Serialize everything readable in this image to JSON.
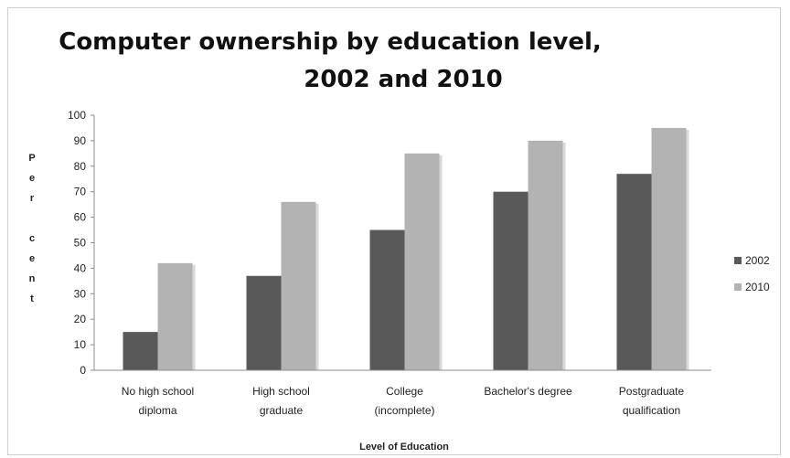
{
  "chart_data": {
    "type": "bar",
    "title_lines": [
      "Computer ownership by education level,",
      "2002 and 2010"
    ],
    "xlabel": "Level of Education",
    "ylabel_chars": [
      "P",
      "e",
      "r",
      "",
      "c",
      "e",
      "n",
      "t"
    ],
    "ylim": [
      0,
      100
    ],
    "yticks": [
      "0",
      "10",
      "20",
      "30",
      "40",
      "50",
      "60",
      "70",
      "80",
      "90",
      "100"
    ],
    "categories": [
      [
        "No high school",
        "diploma"
      ],
      [
        "High school",
        "graduate"
      ],
      [
        "College",
        "(incomplete)"
      ],
      [
        "Bachelor's degree"
      ],
      [
        "Postgraduate",
        "qualification"
      ]
    ],
    "series": [
      {
        "name": "2002",
        "color": "#595959",
        "values": [
          15,
          37,
          55,
          70,
          77
        ]
      },
      {
        "name": "2010",
        "color": "#b3b3b3",
        "values": [
          42,
          66,
          85,
          90,
          95
        ]
      }
    ],
    "grid": false,
    "legend": "right"
  }
}
